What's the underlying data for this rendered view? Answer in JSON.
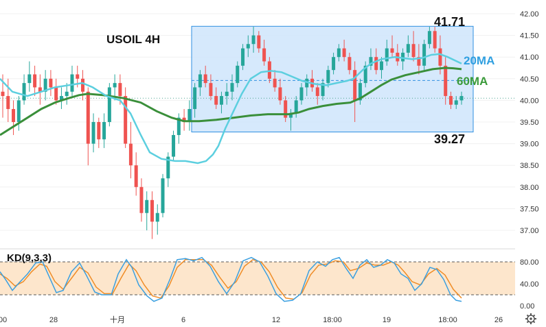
{
  "chart_data": [
    {
      "type": "candlestick",
      "title": "USOIL 4H",
      "ylim": [
        36.6,
        42.1
      ],
      "y_ticks": [
        "42.00",
        "41.50",
        "41.00",
        "40.50",
        "40.00",
        "39.50",
        "39.00",
        "38.50",
        "38.00",
        "37.50",
        "37.00"
      ],
      "x_ticks": [
        "00",
        "28",
        "十月",
        "6",
        "12",
        "18:00",
        "19",
        "18:00",
        "26"
      ],
      "channel": {
        "upper": 41.71,
        "lower": 39.27,
        "mid": 40.46,
        "upper_label": "41.71",
        "lower_label": "39.27"
      },
      "ma_labels": {
        "ma20": "20MA",
        "ma60": "60MA"
      },
      "last_price": 40.05,
      "colors": {
        "up": "#26a69a",
        "down": "#ef5350",
        "ma20": "#5ccfdf",
        "ma60": "#3a8f3a",
        "channel_fill": "#cfe5fb",
        "channel_line": "#2f8fe0",
        "label20": "#2f9fe0",
        "label60": "#3a9a3a"
      },
      "candles": [
        [
          40.2,
          40.6,
          39.6,
          40.1
        ],
        [
          40.1,
          40.5,
          39.5,
          39.8
        ],
        [
          39.8,
          40.0,
          39.2,
          39.5
        ],
        [
          39.5,
          40.1,
          39.3,
          40.0
        ],
        [
          40.0,
          40.6,
          39.9,
          40.4
        ],
        [
          40.4,
          40.9,
          40.2,
          40.6
        ],
        [
          40.6,
          40.8,
          40.1,
          40.3
        ],
        [
          40.3,
          40.6,
          39.9,
          40.2
        ],
        [
          40.2,
          40.7,
          40.0,
          40.5
        ],
        [
          40.5,
          40.7,
          40.1,
          40.3
        ],
        [
          40.3,
          40.5,
          39.9,
          40.0
        ],
        [
          40.0,
          40.3,
          39.8,
          40.1
        ],
        [
          40.1,
          40.4,
          39.9,
          40.2
        ],
        [
          40.2,
          40.8,
          40.1,
          40.6
        ],
        [
          40.6,
          40.8,
          40.3,
          40.5
        ],
        [
          40.5,
          40.7,
          40.0,
          40.2
        ],
        [
          40.2,
          40.3,
          38.5,
          39.0
        ],
        [
          39.0,
          39.7,
          38.8,
          39.5
        ],
        [
          39.5,
          39.6,
          38.9,
          39.1
        ],
        [
          39.1,
          39.7,
          38.9,
          39.5
        ],
        [
          39.5,
          40.4,
          39.4,
          40.3
        ],
        [
          40.3,
          40.6,
          40.0,
          40.4
        ],
        [
          40.4,
          40.6,
          39.9,
          40.1
        ],
        [
          40.1,
          40.3,
          38.9,
          39.0
        ],
        [
          39.0,
          39.5,
          38.2,
          38.5
        ],
        [
          38.5,
          38.8,
          37.8,
          38.0
        ],
        [
          38.0,
          38.2,
          37.2,
          37.4
        ],
        [
          37.4,
          37.9,
          37.0,
          37.7
        ],
        [
          37.7,
          37.9,
          36.8,
          37.2
        ],
        [
          37.2,
          37.6,
          36.9,
          37.4
        ],
        [
          37.4,
          38.3,
          37.3,
          38.2
        ],
        [
          38.2,
          38.8,
          38.0,
          38.7
        ],
        [
          38.7,
          39.3,
          38.6,
          39.2
        ],
        [
          39.2,
          39.7,
          39.0,
          39.6
        ],
        [
          39.6,
          39.8,
          39.3,
          39.5
        ],
        [
          39.5,
          40.0,
          39.3,
          39.8
        ],
        [
          39.8,
          40.4,
          39.6,
          40.3
        ],
        [
          40.3,
          40.7,
          40.1,
          40.6
        ],
        [
          40.6,
          40.8,
          40.3,
          40.4
        ],
        [
          40.4,
          40.6,
          40.0,
          40.1
        ],
        [
          40.1,
          40.3,
          39.8,
          39.9
        ],
        [
          39.9,
          40.2,
          39.7,
          40.1
        ],
        [
          40.1,
          40.4,
          39.9,
          40.2
        ],
        [
          40.2,
          40.6,
          40.0,
          40.4
        ],
        [
          40.4,
          40.9,
          40.3,
          40.8
        ],
        [
          40.8,
          41.3,
          40.7,
          41.2
        ],
        [
          41.2,
          41.5,
          41.0,
          41.3
        ],
        [
          41.3,
          41.7,
          41.1,
          41.5
        ],
        [
          41.5,
          41.6,
          41.1,
          41.2
        ],
        [
          41.2,
          41.4,
          40.8,
          40.9
        ],
        [
          40.9,
          41.0,
          40.4,
          40.5
        ],
        [
          40.5,
          40.7,
          40.2,
          40.3
        ],
        [
          40.3,
          40.5,
          39.9,
          40.0
        ],
        [
          40.0,
          40.1,
          39.5,
          39.6
        ],
        [
          39.6,
          39.8,
          39.3,
          39.7
        ],
        [
          39.7,
          40.1,
          39.6,
          40.0
        ],
        [
          40.0,
          40.4,
          39.9,
          40.3
        ],
        [
          40.3,
          40.6,
          40.1,
          40.5
        ],
        [
          40.5,
          40.7,
          40.2,
          40.3
        ],
        [
          40.3,
          40.4,
          39.9,
          40.1
        ],
        [
          40.1,
          40.5,
          40.0,
          40.4
        ],
        [
          40.4,
          40.8,
          40.3,
          40.7
        ],
        [
          40.7,
          41.1,
          40.6,
          41.0
        ],
        [
          41.0,
          41.3,
          40.9,
          41.2
        ],
        [
          41.2,
          41.4,
          40.9,
          41.0
        ],
        [
          41.0,
          41.1,
          40.6,
          40.7
        ],
        [
          40.7,
          40.9,
          39.5,
          40.0
        ],
        [
          40.0,
          40.5,
          39.9,
          40.4
        ],
        [
          40.4,
          40.9,
          40.3,
          40.8
        ],
        [
          40.8,
          41.2,
          40.7,
          41.0
        ],
        [
          41.0,
          41.2,
          40.6,
          40.7
        ],
        [
          40.7,
          41.0,
          40.5,
          40.9
        ],
        [
          40.9,
          41.4,
          40.8,
          41.2
        ],
        [
          41.2,
          41.5,
          41.0,
          41.1
        ],
        [
          41.1,
          41.3,
          40.8,
          40.9
        ],
        [
          40.9,
          41.2,
          40.7,
          41.1
        ],
        [
          41.1,
          41.5,
          41.0,
          41.3
        ],
        [
          41.3,
          41.6,
          40.9,
          41.0
        ],
        [
          41.0,
          41.3,
          40.6,
          40.8
        ],
        [
          40.8,
          41.4,
          40.7,
          41.3
        ],
        [
          41.3,
          41.7,
          41.2,
          41.6
        ],
        [
          41.6,
          41.7,
          41.1,
          41.2
        ],
        [
          41.2,
          41.5,
          40.6,
          40.8
        ],
        [
          40.8,
          41.0,
          39.9,
          40.1
        ],
        [
          40.1,
          40.2,
          39.8,
          39.9
        ],
        [
          39.9,
          40.1,
          39.8,
          40.0
        ],
        [
          40.0,
          40.2,
          39.9,
          40.1
        ]
      ],
      "ma20": [
        [
          0,
          40.5
        ],
        [
          18,
          40.2
        ],
        [
          40,
          40.1
        ],
        [
          60,
          40.2
        ],
        [
          80,
          40.3
        ],
        [
          100,
          40.35
        ],
        [
          120,
          40.4
        ],
        [
          135,
          40.3
        ],
        [
          155,
          40.1
        ],
        [
          175,
          40.0
        ],
        [
          190,
          39.7
        ],
        [
          205,
          39.2
        ],
        [
          218,
          38.8
        ],
        [
          235,
          38.65
        ],
        [
          255,
          38.6
        ],
        [
          270,
          38.6
        ],
        [
          288,
          38.55
        ],
        [
          300,
          38.6
        ],
        [
          310,
          38.75
        ],
        [
          318,
          38.95
        ],
        [
          328,
          39.35
        ],
        [
          340,
          39.75
        ],
        [
          352,
          40.15
        ],
        [
          365,
          40.5
        ],
        [
          380,
          40.65
        ],
        [
          395,
          40.68
        ],
        [
          410,
          40.65
        ],
        [
          425,
          40.55
        ],
        [
          440,
          40.45
        ],
        [
          458,
          40.38
        ],
        [
          475,
          40.35
        ],
        [
          490,
          40.4
        ],
        [
          505,
          40.45
        ],
        [
          515,
          40.5
        ],
        [
          528,
          40.7
        ],
        [
          540,
          40.85
        ],
        [
          555,
          40.95
        ],
        [
          575,
          41.0
        ],
        [
          600,
          40.95
        ],
        [
          615,
          40.98
        ],
        [
          628,
          41.05
        ],
        [
          640,
          41.07
        ],
        [
          652,
          41.0
        ],
        [
          672,
          40.85
        ]
      ],
      "ma60": [
        [
          0,
          39.2
        ],
        [
          20,
          39.4
        ],
        [
          40,
          39.6
        ],
        [
          60,
          39.8
        ],
        [
          80,
          39.95
        ],
        [
          100,
          40.05
        ],
        [
          115,
          40.12
        ],
        [
          128,
          40.15
        ],
        [
          150,
          40.12
        ],
        [
          180,
          40.05
        ],
        [
          205,
          39.95
        ],
        [
          228,
          39.75
        ],
        [
          250,
          39.6
        ],
        [
          268,
          39.52
        ],
        [
          290,
          39.52
        ],
        [
          315,
          39.55
        ],
        [
          340,
          39.6
        ],
        [
          365,
          39.65
        ],
        [
          390,
          39.68
        ],
        [
          405,
          39.68
        ],
        [
          420,
          39.68
        ],
        [
          435,
          39.72
        ],
        [
          450,
          39.8
        ],
        [
          470,
          39.87
        ],
        [
          490,
          39.92
        ],
        [
          510,
          39.95
        ],
        [
          525,
          40.05
        ],
        [
          540,
          40.2
        ],
        [
          555,
          40.35
        ],
        [
          570,
          40.48
        ],
        [
          590,
          40.58
        ],
        [
          610,
          40.65
        ],
        [
          630,
          40.72
        ],
        [
          648,
          40.75
        ],
        [
          660,
          40.74
        ],
        [
          672,
          40.72
        ]
      ]
    },
    {
      "type": "line",
      "title": "KD(9,3,3)",
      "ylim": [
        -5,
        95
      ],
      "y_ticks": [
        "80.00",
        "40.00",
        "0.00"
      ],
      "bands": [
        20,
        80
      ],
      "colors": {
        "k": "#3a9fe0",
        "d": "#ef8c26",
        "band_fill": "#fde6cc"
      },
      "k": [
        [
          0,
          62
        ],
        [
          8,
          48
        ],
        [
          18,
          28
        ],
        [
          28,
          42
        ],
        [
          40,
          58
        ],
        [
          52,
          78
        ],
        [
          62,
          80
        ],
        [
          72,
          52
        ],
        [
          82,
          24
        ],
        [
          92,
          28
        ],
        [
          104,
          62
        ],
        [
          116,
          78
        ],
        [
          126,
          55
        ],
        [
          138,
          25
        ],
        [
          148,
          20
        ],
        [
          162,
          20
        ],
        [
          172,
          58
        ],
        [
          184,
          84
        ],
        [
          192,
          70
        ],
        [
          202,
          38
        ],
        [
          214,
          18
        ],
        [
          224,
          8
        ],
        [
          236,
          14
        ],
        [
          248,
          50
        ],
        [
          258,
          84
        ],
        [
          270,
          86
        ],
        [
          282,
          82
        ],
        [
          294,
          88
        ],
        [
          306,
          72
        ],
        [
          318,
          44
        ],
        [
          330,
          22
        ],
        [
          342,
          44
        ],
        [
          354,
          82
        ],
        [
          366,
          88
        ],
        [
          378,
          80
        ],
        [
          390,
          54
        ],
        [
          402,
          22
        ],
        [
          414,
          8
        ],
        [
          426,
          10
        ],
        [
          438,
          22
        ],
        [
          450,
          64
        ],
        [
          462,
          80
        ],
        [
          474,
          72
        ],
        [
          484,
          84
        ],
        [
          494,
          88
        ],
        [
          504,
          68
        ],
        [
          514,
          50
        ],
        [
          524,
          74
        ],
        [
          534,
          84
        ],
        [
          544,
          70
        ],
        [
          554,
          74
        ],
        [
          564,
          84
        ],
        [
          574,
          78
        ],
        [
          584,
          58
        ],
        [
          594,
          50
        ],
        [
          604,
          28
        ],
        [
          614,
          40
        ],
        [
          626,
          70
        ],
        [
          636,
          66
        ],
        [
          646,
          48
        ],
        [
          656,
          20
        ],
        [
          664,
          10
        ],
        [
          672,
          8
        ]
      ],
      "d": [
        [
          0,
          58
        ],
        [
          10,
          50
        ],
        [
          22,
          36
        ],
        [
          34,
          44
        ],
        [
          46,
          62
        ],
        [
          58,
          76
        ],
        [
          68,
          72
        ],
        [
          80,
          44
        ],
        [
          92,
          30
        ],
        [
          104,
          50
        ],
        [
          116,
          70
        ],
        [
          128,
          60
        ],
        [
          140,
          34
        ],
        [
          152,
          22
        ],
        [
          164,
          22
        ],
        [
          176,
          50
        ],
        [
          188,
          76
        ],
        [
          198,
          64
        ],
        [
          210,
          38
        ],
        [
          222,
          18
        ],
        [
          234,
          14
        ],
        [
          246,
          36
        ],
        [
          258,
          70
        ],
        [
          270,
          84
        ],
        [
          284,
          84
        ],
        [
          296,
          84
        ],
        [
          308,
          74
        ],
        [
          320,
          52
        ],
        [
          332,
          32
        ],
        [
          344,
          44
        ],
        [
          356,
          72
        ],
        [
          368,
          84
        ],
        [
          380,
          80
        ],
        [
          392,
          62
        ],
        [
          404,
          34
        ],
        [
          416,
          14
        ],
        [
          428,
          12
        ],
        [
          440,
          24
        ],
        [
          452,
          56
        ],
        [
          464,
          74
        ],
        [
          476,
          76
        ],
        [
          488,
          82
        ],
        [
          500,
          80
        ],
        [
          510,
          64
        ],
        [
          522,
          68
        ],
        [
          534,
          78
        ],
        [
          546,
          74
        ],
        [
          558,
          74
        ],
        [
          570,
          80
        ],
        [
          580,
          74
        ],
        [
          590,
          60
        ],
        [
          600,
          44
        ],
        [
          612,
          38
        ],
        [
          624,
          58
        ],
        [
          636,
          68
        ],
        [
          648,
          56
        ],
        [
          660,
          30
        ],
        [
          672,
          14
        ]
      ]
    }
  ]
}
